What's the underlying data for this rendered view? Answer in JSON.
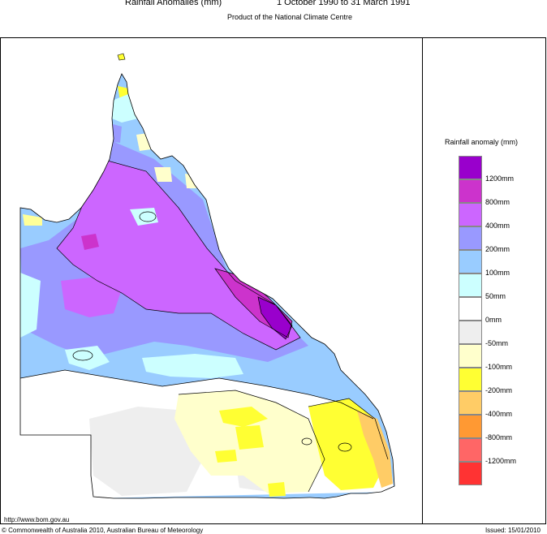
{
  "header": {
    "title": "Rainfall Anomalies (mm)",
    "period": "1 October 1990 to 31 March 1991",
    "subtitle": "Product of the National Climate Centre"
  },
  "legend": {
    "title": "Rainfall anomaly (mm)",
    "items": [
      {
        "label": "1200mm",
        "color": "#9900cc"
      },
      {
        "label": "800mm",
        "color": "#cc33cc"
      },
      {
        "label": "400mm",
        "color": "#cc66ff"
      },
      {
        "label": "200mm",
        "color": "#9999ff"
      },
      {
        "label": "100mm",
        "color": "#99ccff"
      },
      {
        "label": "50mm",
        "color": "#ccffff"
      },
      {
        "label": "0mm",
        "color": "#ffffff"
      },
      {
        "label": "-50mm",
        "color": "#eeeeee"
      },
      {
        "label": "-100mm",
        "color": "#ffffcc"
      },
      {
        "label": "-200mm",
        "color": "#ffff33"
      },
      {
        "label": "-400mm",
        "color": "#ffcc66"
      },
      {
        "label": "-800mm",
        "color": "#ff9933"
      },
      {
        "label": "-1200mm",
        "color": "#ff6666"
      },
      {
        "label": "",
        "color": "#ff3333"
      }
    ]
  },
  "footer": {
    "url": "http://www.bom.gov.au",
    "copyright": "© Commonwealth of Australia 2010, Australian Bureau of Meteorology",
    "issued": "Issued: 15/01/2010"
  }
}
